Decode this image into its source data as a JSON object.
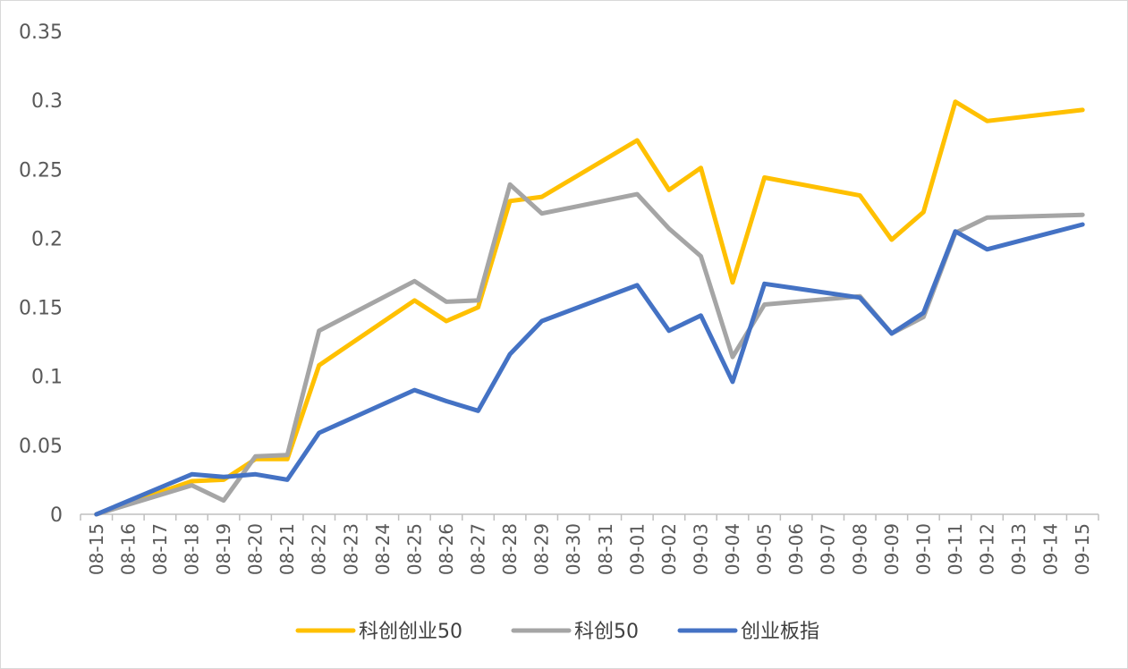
{
  "chart_data": {
    "type": "line",
    "title": "",
    "xlabel": "",
    "ylabel": "",
    "ylim": [
      0,
      0.35
    ],
    "yticks": [
      0,
      0.05,
      0.1,
      0.15,
      0.2,
      0.25,
      0.3,
      0.35
    ],
    "ytick_labels": [
      "0",
      "0.05",
      "0.1",
      "0.15",
      "0.2",
      "0.25",
      "0.3",
      "0.35"
    ],
    "grid": false,
    "legend_position": "bottom",
    "categories": [
      "08-15",
      "08-16",
      "08-17",
      "08-18",
      "08-19",
      "08-20",
      "08-21",
      "08-22",
      "08-23",
      "08-24",
      "08-25",
      "08-26",
      "08-27",
      "08-28",
      "08-29",
      "08-30",
      "08-31",
      "09-01",
      "09-02",
      "09-03",
      "09-04",
      "09-05",
      "09-06",
      "09-07",
      "09-08",
      "09-09",
      "09-10",
      "09-11",
      "09-12",
      "09-13",
      "09-14",
      "09-15"
    ],
    "series": [
      {
        "name": "科创创业50",
        "color": "#FFC000",
        "values": [
          0,
          null,
          null,
          0.024,
          0.025,
          0.04,
          0.04,
          0.108,
          null,
          null,
          0.155,
          0.14,
          0.15,
          0.227,
          0.23,
          null,
          null,
          0.271,
          0.235,
          0.251,
          0.168,
          0.244,
          null,
          null,
          0.231,
          0.199,
          0.219,
          0.299,
          0.285,
          null,
          null,
          0.293
        ]
      },
      {
        "name": "科创50",
        "color": "#A5A5A5",
        "values": [
          0,
          null,
          null,
          0.021,
          0.01,
          0.042,
          0.043,
          0.133,
          null,
          null,
          0.169,
          0.154,
          0.155,
          0.239,
          0.218,
          null,
          null,
          0.232,
          0.207,
          0.187,
          0.114,
          0.152,
          null,
          null,
          0.158,
          0.131,
          0.143,
          0.204,
          0.215,
          null,
          null,
          0.217
        ]
      },
      {
        "name": "创业板指",
        "color": "#4472C4",
        "values": [
          0,
          null,
          null,
          0.029,
          0.027,
          0.029,
          0.025,
          0.059,
          null,
          null,
          0.09,
          0.082,
          0.075,
          0.116,
          0.14,
          null,
          null,
          0.166,
          0.133,
          0.144,
          0.096,
          0.167,
          null,
          null,
          0.157,
          0.131,
          0.146,
          0.205,
          0.192,
          null,
          null,
          0.21
        ]
      }
    ]
  }
}
